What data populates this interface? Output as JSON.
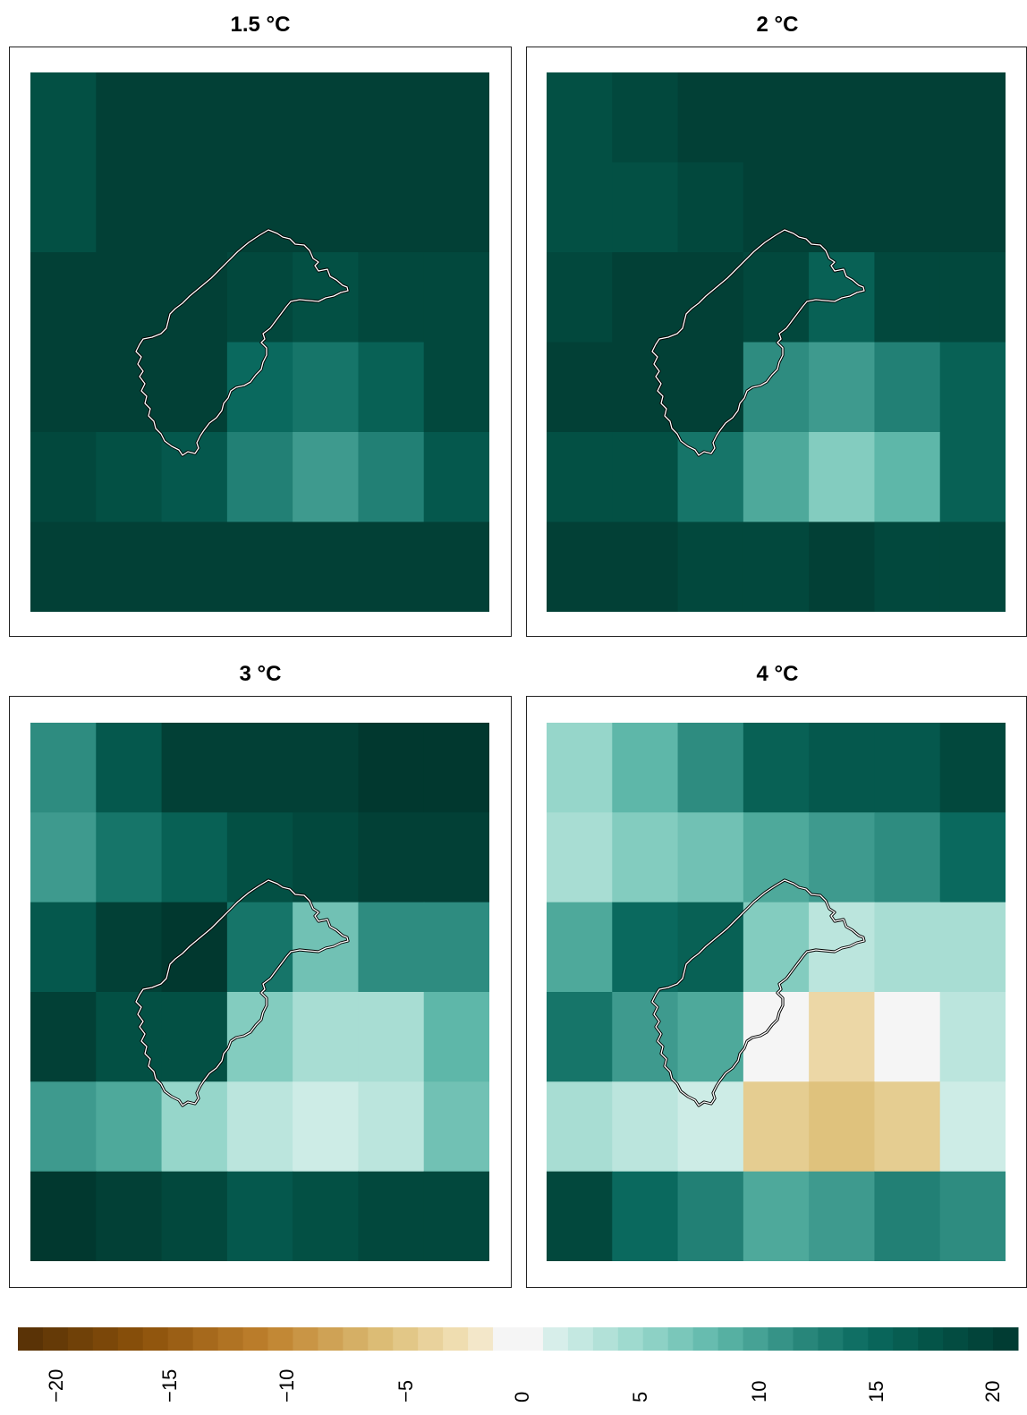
{
  "panels": [
    {
      "title": "1.5 °C",
      "grid": [
        [
          17,
          19,
          19,
          19,
          19,
          19,
          19
        ],
        [
          17,
          19,
          19,
          19,
          19,
          19,
          19
        ],
        [
          19,
          19,
          19,
          18,
          17,
          18,
          18
        ],
        [
          19,
          19,
          19,
          14,
          13,
          15,
          18
        ],
        [
          18,
          17,
          16,
          12,
          10,
          12,
          16
        ],
        [
          19,
          19,
          19,
          19,
          19,
          19,
          19
        ]
      ]
    },
    {
      "title": "2 °C",
      "grid": [
        [
          17,
          18,
          19,
          19,
          19,
          19,
          19
        ],
        [
          17,
          17,
          18,
          19,
          19,
          19,
          19
        ],
        [
          18,
          19,
          19,
          18,
          15,
          18,
          18
        ],
        [
          19,
          19,
          19,
          11,
          10,
          12,
          15
        ],
        [
          17,
          17,
          13,
          9,
          6,
          8,
          15
        ],
        [
          19,
          19,
          18,
          18,
          19,
          18,
          18
        ]
      ]
    },
    {
      "title": "3 °C",
      "grid": [
        [
          11,
          16,
          19,
          19,
          19,
          20,
          20
        ],
        [
          10,
          13,
          15,
          17,
          18,
          19,
          19
        ],
        [
          16,
          19,
          20,
          13,
          7,
          11,
          11
        ],
        [
          19,
          17,
          17,
          6,
          4,
          4,
          8
        ],
        [
          10,
          9,
          5,
          3,
          2,
          3,
          7
        ],
        [
          20,
          19,
          18,
          16,
          17,
          18,
          18
        ]
      ]
    },
    {
      "title": "4 °C",
      "grid": [
        [
          5,
          8,
          11,
          15,
          16,
          16,
          18
        ],
        [
          4,
          6,
          7,
          9,
          10,
          11,
          14
        ],
        [
          9,
          14,
          15,
          6,
          3,
          4,
          4
        ],
        [
          13,
          10,
          9,
          0,
          -3,
          0,
          3
        ],
        [
          4,
          3,
          2,
          -4,
          -5,
          -4,
          2
        ],
        [
          18,
          14,
          12,
          9,
          10,
          12,
          11
        ]
      ]
    }
  ],
  "colorbar": {
    "min": -20,
    "max": 20,
    "ticks": [
      "−20",
      "−15",
      "−10",
      "−5",
      "0",
      "5",
      "10",
      "15",
      "20"
    ],
    "tick_values": [
      -20,
      -15,
      -10,
      -5,
      0,
      5,
      10,
      15,
      20
    ]
  },
  "colors": {
    "negative_end": "#543005",
    "neutral": "#f5f5f5",
    "positive_end": "#003c30",
    "outline_outer": "#000000",
    "outline_inner": "#ffffff"
  }
}
